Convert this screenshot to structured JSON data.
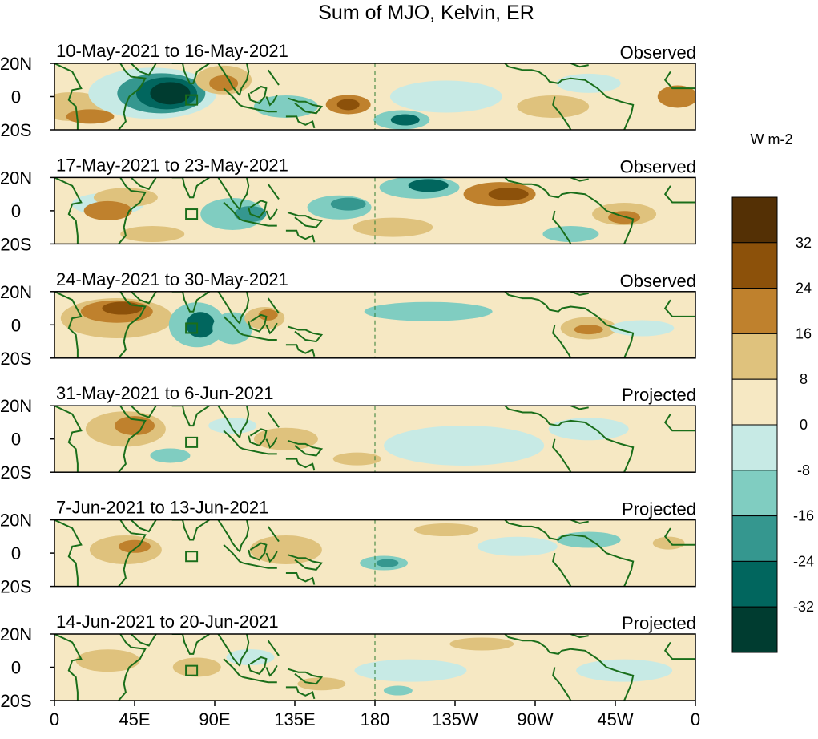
{
  "title": "Sum of MJO, Kelvin, ER",
  "panels": [
    {
      "date_range": "10-May-2021 to 16-May-2021",
      "status": "Observed"
    },
    {
      "date_range": "17-May-2021 to 23-May-2021",
      "status": "Observed"
    },
    {
      "date_range": "24-May-2021 to 30-May-2021",
      "status": "Observed"
    },
    {
      "date_range": "31-May-2021 to 6-Jun-2021",
      "status": "Projected"
    },
    {
      "date_range": "7-Jun-2021 to 13-Jun-2021",
      "status": "Projected"
    },
    {
      "date_range": "14-Jun-2021 to 20-Jun-2021",
      "status": "Projected"
    }
  ],
  "lat_ticks": [
    "20N",
    "0",
    "20S"
  ],
  "lon_ticks": [
    "0",
    "45E",
    "90E",
    "135E",
    "180",
    "135W",
    "90W",
    "45W",
    "0"
  ],
  "colorbar": {
    "units": "W m-2",
    "tick_labels": [
      "32",
      "24",
      "16",
      "8",
      "0",
      "-8",
      "-16",
      "-24",
      "-32"
    ],
    "colors": [
      "#543005",
      "#8c510a",
      "#bf812d",
      "#dfc27d",
      "#f6e8c3",
      "#c7eae5",
      "#80cdc1",
      "#35978f",
      "#01665e",
      "#003c30"
    ]
  },
  "map_colors": {
    "background": "#f6e8c3",
    "coastline": "#1a6e1a",
    "dateline": "#2e7d32"
  }
}
